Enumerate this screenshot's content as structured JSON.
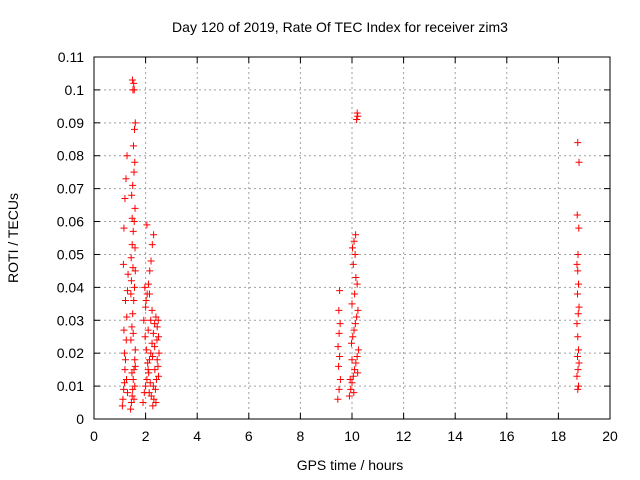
{
  "chart_data": {
    "type": "scatter",
    "title": "Day 120 of 2019, Rate Of TEC Index for receiver zim3",
    "xlabel": "GPS time / hours",
    "ylabel": "ROTI / TECUs",
    "xlim": [
      0,
      20
    ],
    "ylim": [
      0,
      0.11
    ],
    "xticks": [
      0,
      2,
      4,
      6,
      8,
      10,
      12,
      14,
      16,
      18,
      20
    ],
    "xtick_labels": [
      "0",
      "2",
      "4",
      "6",
      "8",
      "10",
      "12",
      "14",
      "16",
      "18",
      "20"
    ],
    "yticks": [
      0,
      0.01,
      0.02,
      0.03,
      0.04,
      0.05,
      0.06,
      0.07,
      0.08,
      0.09,
      0.1,
      0.11
    ],
    "ytick_labels": [
      "0",
      "0.01",
      "0.02",
      "0.03",
      "0.04",
      "0.05",
      "0.06",
      "0.07",
      "0.08",
      "0.09",
      "0.1",
      "0.11"
    ],
    "grid": true,
    "marker": "+",
    "color": "#ff0000",
    "series": [
      {
        "points": [
          [
            1.1,
            0.004
          ],
          [
            1.12,
            0.006
          ],
          [
            1.15,
            0.009
          ],
          [
            1.18,
            0.011
          ],
          [
            1.2,
            0.015
          ],
          [
            1.22,
            0.018
          ],
          [
            1.25,
            0.024
          ],
          [
            1.27,
            0.031
          ],
          [
            1.3,
            0.039
          ],
          [
            1.32,
            0.044
          ],
          [
            1.14,
            0.047
          ],
          [
            1.16,
            0.058
          ],
          [
            1.2,
            0.067
          ],
          [
            1.24,
            0.073
          ],
          [
            1.28,
            0.08
          ],
          [
            1.18,
            0.02
          ],
          [
            1.26,
            0.012
          ],
          [
            1.3,
            0.008
          ],
          [
            1.22,
            0.036
          ],
          [
            1.16,
            0.027
          ],
          [
            1.42,
            0.003
          ],
          [
            1.45,
            0.005
          ],
          [
            1.48,
            0.007
          ],
          [
            1.5,
            0.009
          ],
          [
            1.52,
            0.012
          ],
          [
            1.55,
            0.015
          ],
          [
            1.58,
            0.018
          ],
          [
            1.6,
            0.021
          ],
          [
            1.43,
            0.024
          ],
          [
            1.47,
            0.028
          ],
          [
            1.5,
            0.032
          ],
          [
            1.54,
            0.036
          ],
          [
            1.57,
            0.04
          ],
          [
            1.6,
            0.045
          ],
          [
            1.44,
            0.049
          ],
          [
            1.48,
            0.053
          ],
          [
            1.52,
            0.057
          ],
          [
            1.56,
            0.06
          ],
          [
            1.59,
            0.064
          ],
          [
            1.46,
            0.068
          ],
          [
            1.5,
            0.071
          ],
          [
            1.55,
            0.075
          ],
          [
            1.58,
            0.078
          ],
          [
            1.53,
            0.083
          ],
          [
            1.57,
            0.088
          ],
          [
            1.6,
            0.09
          ],
          [
            1.51,
            0.1
          ],
          [
            1.54,
            0.102
          ],
          [
            1.49,
            0.103
          ],
          [
            1.56,
            0.1
          ],
          [
            1.45,
            0.042
          ],
          [
            1.52,
            0.026
          ],
          [
            1.58,
            0.01
          ],
          [
            1.47,
            0.014
          ],
          [
            1.55,
            0.006
          ],
          [
            1.6,
            0.016
          ],
          [
            1.43,
            0.038
          ],
          [
            1.51,
            0.046
          ],
          [
            1.59,
            0.052
          ],
          [
            1.48,
            0.061
          ],
          [
            1.9,
            0.005
          ],
          [
            1.95,
            0.008
          ],
          [
            2.0,
            0.01
          ],
          [
            2.05,
            0.012
          ],
          [
            2.1,
            0.015
          ],
          [
            2.15,
            0.018
          ],
          [
            2.2,
            0.02
          ],
          [
            2.25,
            0.023
          ],
          [
            2.3,
            0.026
          ],
          [
            2.35,
            0.029
          ],
          [
            2.4,
            0.031
          ],
          [
            2.45,
            0.028
          ],
          [
            2.5,
            0.025
          ],
          [
            2.52,
            0.02
          ],
          [
            2.48,
            0.016
          ],
          [
            2.42,
            0.012
          ],
          [
            2.38,
            0.009
          ],
          [
            2.32,
            0.006
          ],
          [
            2.28,
            0.004
          ],
          [
            2.22,
            0.007
          ],
          [
            2.18,
            0.011
          ],
          [
            2.12,
            0.014
          ],
          [
            2.08,
            0.017
          ],
          [
            2.03,
            0.021
          ],
          [
            1.98,
            0.025
          ],
          [
            1.93,
            0.03
          ],
          [
            2.0,
            0.034
          ],
          [
            2.06,
            0.038
          ],
          [
            2.11,
            0.041
          ],
          [
            2.16,
            0.045
          ],
          [
            2.21,
            0.048
          ],
          [
            2.26,
            0.053
          ],
          [
            2.31,
            0.056
          ],
          [
            2.05,
            0.059
          ],
          [
            2.15,
            0.038
          ],
          [
            2.25,
            0.033
          ],
          [
            2.35,
            0.022
          ],
          [
            2.45,
            0.018
          ],
          [
            2.5,
            0.013
          ],
          [
            2.4,
            0.005
          ],
          [
            1.97,
            0.04
          ],
          [
            2.02,
            0.036
          ],
          [
            2.1,
            0.027
          ],
          [
            2.2,
            0.03
          ],
          [
            2.3,
            0.01
          ],
          [
            2.36,
            0.015
          ],
          [
            2.44,
            0.024
          ],
          [
            2.49,
            0.03
          ],
          [
            2.27,
            0.019
          ],
          [
            2.14,
            0.008
          ],
          [
            9.45,
            0.006
          ],
          [
            9.5,
            0.009
          ],
          [
            9.55,
            0.012
          ],
          [
            9.48,
            0.016
          ],
          [
            9.52,
            0.019
          ],
          [
            9.46,
            0.022
          ],
          [
            9.5,
            0.026
          ],
          [
            9.54,
            0.029
          ],
          [
            9.49,
            0.033
          ],
          [
            9.52,
            0.039
          ],
          [
            9.9,
            0.007
          ],
          [
            9.95,
            0.009
          ],
          [
            10.0,
            0.011
          ],
          [
            10.05,
            0.013
          ],
          [
            10.1,
            0.015
          ],
          [
            10.15,
            0.017
          ],
          [
            10.2,
            0.019
          ],
          [
            10.25,
            0.021
          ],
          [
            9.98,
            0.023
          ],
          [
            10.03,
            0.025
          ],
          [
            10.08,
            0.027
          ],
          [
            10.13,
            0.029
          ],
          [
            10.18,
            0.031
          ],
          [
            10.23,
            0.033
          ],
          [
            10.0,
            0.035
          ],
          [
            10.1,
            0.038
          ],
          [
            10.2,
            0.041
          ],
          [
            10.15,
            0.043
          ],
          [
            10.05,
            0.047
          ],
          [
            10.12,
            0.05
          ],
          [
            10.02,
            0.052
          ],
          [
            10.08,
            0.054
          ],
          [
            10.14,
            0.056
          ],
          [
            10.18,
            0.091
          ],
          [
            10.22,
            0.092
          ],
          [
            10.2,
            0.093
          ],
          [
            9.93,
            0.012
          ],
          [
            10.0,
            0.018
          ],
          [
            10.07,
            0.008
          ],
          [
            10.22,
            0.014
          ],
          [
            18.75,
            0.009
          ],
          [
            18.78,
            0.01
          ],
          [
            18.72,
            0.013
          ],
          [
            18.76,
            0.015
          ],
          [
            18.8,
            0.017
          ],
          [
            18.74,
            0.019
          ],
          [
            18.78,
            0.021
          ],
          [
            18.75,
            0.025
          ],
          [
            18.72,
            0.029
          ],
          [
            18.77,
            0.032
          ],
          [
            18.8,
            0.034
          ],
          [
            18.74,
            0.038
          ],
          [
            18.78,
            0.041
          ],
          [
            18.75,
            0.045
          ],
          [
            18.72,
            0.047
          ],
          [
            18.76,
            0.05
          ],
          [
            18.79,
            0.058
          ],
          [
            18.73,
            0.062
          ],
          [
            18.8,
            0.078
          ],
          [
            18.75,
            0.084
          ]
        ]
      }
    ]
  }
}
